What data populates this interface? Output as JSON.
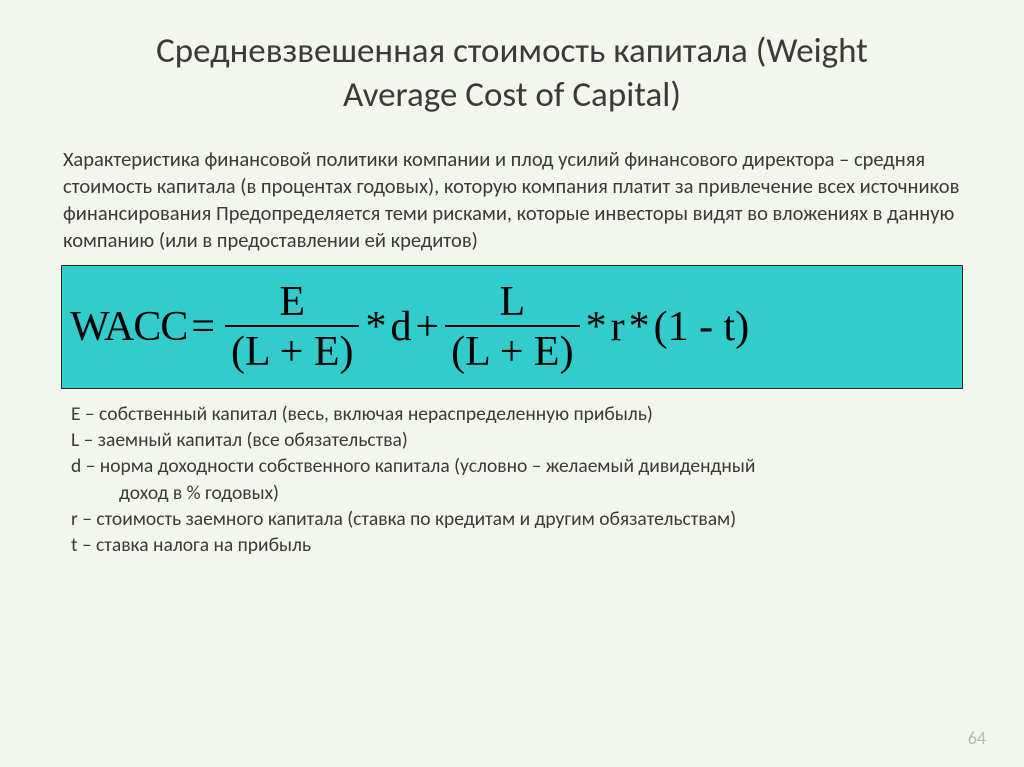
{
  "title": "Средневзвешенная стоимость капитала (Weight Average Cost of Capital)",
  "description": "Характеристика финансовой политики компании и плод усилий финансового директора – средняя стоимость капитала (в процентах годовых), которую компания платит за привлечение всех источников финансирования Предопределяется теми рисками, которые инвесторы видят во вложениях в данную компанию (или в предоставлении ей кредитов)",
  "formula": {
    "lhs": "WACC",
    "eq": "=",
    "frac1_num": "E",
    "frac1_den": "(L + E)",
    "star": "*",
    "d": "d",
    "plus": "+",
    "frac2_num": "L",
    "frac2_den": "(L + E)",
    "r": "r",
    "tail": "(1 - t)",
    "box_bg": "#33cccc",
    "box_border": "#2a2a2a",
    "font": "Times New Roman",
    "fontsize_pt": 32
  },
  "legend": {
    "e": "E – собственный капитал (весь, включая нераспределенную прибыль)",
    "l": "L – заемный капитал (все обязательства)",
    "d": "d – норма доходности собственного капитала (условно – желаемый дивидендный",
    "d2": "доход в % годовых)",
    "r": "r – стоимость заемного капитала (ставка по кредитам и другим обязательствам)",
    "t": "t – ставка налога на прибыль"
  },
  "page_number": "64",
  "colors": {
    "background": "#f2f6ec",
    "text": "#3a3a3a",
    "page_num": "#b9b9b9"
  }
}
